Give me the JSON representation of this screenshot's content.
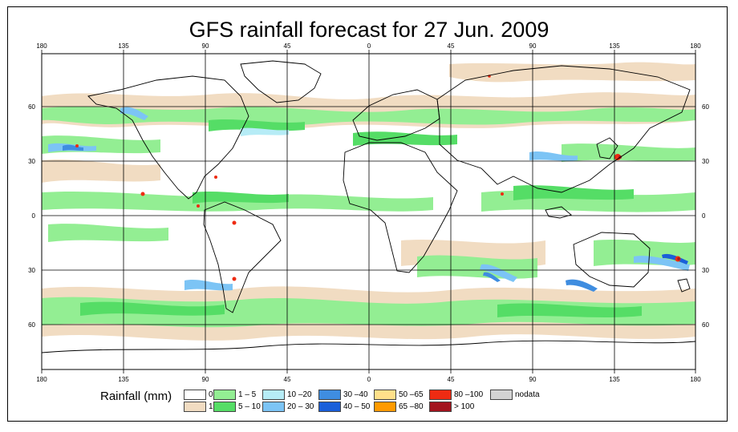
{
  "title": "GFS rainfall forecast for 27 Jun. 2009",
  "map": {
    "lon_ticks": [
      "180",
      "135",
      "90",
      "45",
      "0",
      "45",
      "90",
      "135",
      "180"
    ],
    "lat_ticks_right": [
      "60",
      "30",
      "0",
      "30",
      "60"
    ],
    "lat_ticks_left": [
      "60",
      "30",
      "0",
      "30",
      "60"
    ]
  },
  "legend": {
    "title": "Rainfall (mm)",
    "items": [
      {
        "label": "0",
        "color": "#ffffff"
      },
      {
        "label": "1",
        "color": "#f1dcc2"
      },
      {
        "label": "1 – 5",
        "color": "#93ee93"
      },
      {
        "label": "5 – 10",
        "color": "#55dd66"
      },
      {
        "label": "10 –20",
        "color": "#b6ecf6"
      },
      {
        "label": "20 – 30",
        "color": "#7cc4f5"
      },
      {
        "label": "30 –40",
        "color": "#3f8de0"
      },
      {
        "label": "40 – 50",
        "color": "#1a5fd9"
      },
      {
        "label": "50 –65",
        "color": "#ffe08a"
      },
      {
        "label": "65 –80",
        "color": "#ff9a00"
      },
      {
        "label": "80 –100",
        "color": "#ee2b12"
      },
      {
        "label": "> 100",
        "color": "#a3141e"
      },
      {
        "label": "nodata",
        "color": "#d3d3d3"
      }
    ]
  }
}
